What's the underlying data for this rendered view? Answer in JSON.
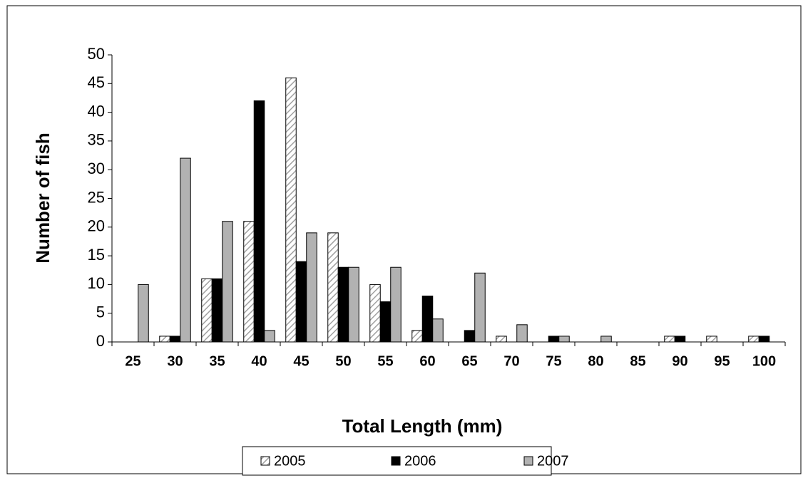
{
  "chart_data": {
    "type": "bar",
    "x_label": "Total Length (mm)",
    "y_label": "Number of fish",
    "categories": [
      "25",
      "30",
      "35",
      "40",
      "45",
      "50",
      "55",
      "60",
      "65",
      "70",
      "75",
      "80",
      "85",
      "90",
      "95",
      "100"
    ],
    "series": [
      {
        "name": "2005",
        "color": "#ffffff",
        "pattern": "hatch",
        "values": [
          0,
          1,
          11,
          21,
          46,
          19,
          10,
          2,
          0,
          1,
          0,
          0,
          0,
          1,
          1,
          1
        ]
      },
      {
        "name": "2006",
        "color": "#000000",
        "values": [
          0,
          1,
          11,
          42,
          14,
          13,
          7,
          8,
          2,
          0,
          1,
          0,
          0,
          1,
          0,
          1
        ]
      },
      {
        "name": "2007",
        "color": "#b2b2b2",
        "values": [
          10,
          32,
          21,
          2,
          19,
          13,
          13,
          4,
          12,
          3,
          1,
          1,
          0,
          0,
          0,
          0
        ]
      }
    ],
    "ylim": [
      0,
      50
    ],
    "yticks": [
      0,
      5,
      10,
      15,
      20,
      25,
      30,
      35,
      40,
      45,
      50
    ],
    "legend": "bottom"
  }
}
